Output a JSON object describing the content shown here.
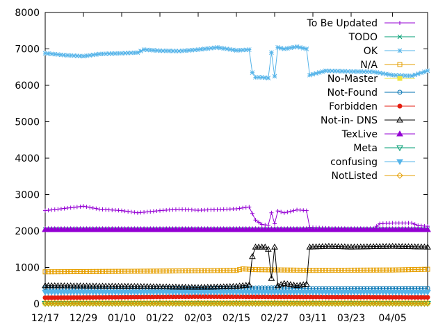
{
  "chart_data": {
    "type": "line",
    "title": "",
    "xlabel": "",
    "ylabel": "",
    "ylim": [
      0,
      8000
    ],
    "yticks": [
      0,
      1000,
      2000,
      3000,
      4000,
      5000,
      6000,
      7000,
      8000
    ],
    "ytick_labels": [
      "0",
      "1000",
      "2000",
      "3000",
      "4000",
      "5000",
      "6000",
      "7000",
      "8000"
    ],
    "x_start": "2012-12-17",
    "x_end": "2013-04-16",
    "xticks": [
      "2012-12-17",
      "2012-12-29",
      "2013-01-10",
      "2013-01-22",
      "2013-02-03",
      "2013-02-15",
      "2013-02-27",
      "2013-03-11",
      "2013-03-23",
      "2013-04-05"
    ],
    "xtick_labels": [
      "12/17",
      "12/29",
      "01/10",
      "01/22",
      "02/03",
      "02/15",
      "02/27",
      "03/11",
      "03/23",
      "04/05"
    ],
    "grid": false,
    "legend_position": "top-right",
    "series": [
      {
        "name": "To Be Updated",
        "color": "#9400d3",
        "marker": "plus",
        "points": [
          [
            "2012-12-17",
            2560
          ],
          [
            "2012-12-23",
            2620
          ],
          [
            "2012-12-29",
            2680
          ],
          [
            "2013-01-03",
            2600
          ],
          [
            "2013-01-10",
            2560
          ],
          [
            "2013-01-15",
            2500
          ],
          [
            "2013-01-22",
            2560
          ],
          [
            "2013-01-28",
            2600
          ],
          [
            "2013-02-03",
            2570
          ],
          [
            "2013-02-09",
            2590
          ],
          [
            "2013-02-15",
            2610
          ],
          [
            "2013-02-19",
            2660
          ],
          [
            "2013-02-21",
            2300
          ],
          [
            "2013-02-23",
            2180
          ],
          [
            "2013-02-25",
            2160
          ],
          [
            "2013-02-26",
            2500
          ],
          [
            "2013-02-27",
            2200
          ],
          [
            "2013-02-28",
            2550
          ],
          [
            "2013-03-02",
            2500
          ],
          [
            "2013-03-06",
            2580
          ],
          [
            "2013-03-09",
            2560
          ],
          [
            "2013-03-10",
            2100
          ],
          [
            "2013-03-15",
            2080
          ],
          [
            "2013-03-23",
            2050
          ],
          [
            "2013-03-30",
            2060
          ],
          [
            "2013-04-01",
            2200
          ],
          [
            "2013-04-05",
            2220
          ],
          [
            "2013-04-11",
            2220
          ],
          [
            "2013-04-13",
            2150
          ],
          [
            "2013-04-16",
            2130
          ]
        ]
      },
      {
        "name": "TODO",
        "color": "#009e73",
        "marker": "x",
        "points": [
          [
            "2012-12-17",
            2040
          ],
          [
            "2013-04-16",
            2040
          ]
        ]
      },
      {
        "name": "OK",
        "color": "#56b4e9",
        "marker": "star",
        "points": [
          [
            "2012-12-17",
            6880
          ],
          [
            "2012-12-23",
            6830
          ],
          [
            "2012-12-29",
            6800
          ],
          [
            "2013-01-03",
            6860
          ],
          [
            "2013-01-10",
            6880
          ],
          [
            "2013-01-15",
            6900
          ],
          [
            "2013-01-17",
            6980
          ],
          [
            "2013-01-22",
            6950
          ],
          [
            "2013-01-28",
            6940
          ],
          [
            "2013-02-03",
            6980
          ],
          [
            "2013-02-09",
            7040
          ],
          [
            "2013-02-15",
            6960
          ],
          [
            "2013-02-19",
            6980
          ],
          [
            "2013-02-20",
            6350
          ],
          [
            "2013-02-21",
            6220
          ],
          [
            "2013-02-23",
            6220
          ],
          [
            "2013-02-25",
            6200
          ],
          [
            "2013-02-26",
            6900
          ],
          [
            "2013-02-27",
            6250
          ],
          [
            "2013-02-28",
            7040
          ],
          [
            "2013-03-02",
            7000
          ],
          [
            "2013-03-06",
            7060
          ],
          [
            "2013-03-09",
            7000
          ],
          [
            "2013-03-10",
            6280
          ],
          [
            "2013-03-15",
            6400
          ],
          [
            "2013-03-23",
            6380
          ],
          [
            "2013-03-30",
            6370
          ],
          [
            "2013-04-05",
            6280
          ],
          [
            "2013-04-11",
            6260
          ],
          [
            "2013-04-16",
            6400
          ]
        ]
      },
      {
        "name": "N/A",
        "color": "#e69f00",
        "marker": "square",
        "points": [
          [
            "2012-12-17",
            880
          ],
          [
            "2013-01-22",
            900
          ],
          [
            "2013-02-15",
            920
          ],
          [
            "2013-02-17",
            960
          ],
          [
            "2013-02-21",
            940
          ],
          [
            "2013-03-11",
            920
          ],
          [
            "2013-04-05",
            930
          ],
          [
            "2013-04-16",
            950
          ]
        ]
      },
      {
        "name": "No-Master",
        "color": "#f0e442",
        "marker": "fsquare",
        "points": [
          [
            "2012-12-17",
            20
          ],
          [
            "2013-04-16",
            20
          ]
        ]
      },
      {
        "name": "Not-Found",
        "color": "#0072b2",
        "marker": "circle",
        "points": [
          [
            "2012-12-17",
            440
          ],
          [
            "2013-01-22",
            420
          ],
          [
            "2013-02-27",
            440
          ],
          [
            "2013-03-11",
            420
          ],
          [
            "2013-04-16",
            430
          ]
        ]
      },
      {
        "name": "Forbidden",
        "color": "#e51e10",
        "marker": "fcircle",
        "points": [
          [
            "2012-12-17",
            170
          ],
          [
            "2013-02-03",
            200
          ],
          [
            "2013-03-11",
            190
          ],
          [
            "2013-04-16",
            180
          ]
        ]
      },
      {
        "name": "Not-in- DNS",
        "color": "#000000",
        "marker": "triangle",
        "points": [
          [
            "2012-12-17",
            500
          ],
          [
            "2013-01-15",
            480
          ],
          [
            "2013-02-03",
            450
          ],
          [
            "2013-02-15",
            480
          ],
          [
            "2013-02-19",
            520
          ],
          [
            "2013-02-20",
            1300
          ],
          [
            "2013-02-21",
            1560
          ],
          [
            "2013-02-24",
            1560
          ],
          [
            "2013-02-25",
            1500
          ],
          [
            "2013-02-26",
            700
          ],
          [
            "2013-02-27",
            1560
          ],
          [
            "2013-02-28",
            500
          ],
          [
            "2013-03-02",
            560
          ],
          [
            "2013-03-06",
            500
          ],
          [
            "2013-03-09",
            540
          ],
          [
            "2013-03-10",
            1560
          ],
          [
            "2013-03-16",
            1580
          ],
          [
            "2013-03-23",
            1560
          ],
          [
            "2013-04-05",
            1580
          ],
          [
            "2013-04-16",
            1560
          ]
        ]
      },
      {
        "name": "TexLive",
        "color": "#9400d3",
        "marker": "ftriangle",
        "points": [
          [
            "2012-12-17",
            2040
          ],
          [
            "2013-04-16",
            2040
          ]
        ]
      },
      {
        "name": "Meta",
        "color": "#009e73",
        "marker": "itriangle",
        "points": [
          [
            "2012-12-17",
            10
          ],
          [
            "2013-04-16",
            10
          ]
        ]
      },
      {
        "name": "confusing",
        "color": "#56b4e9",
        "marker": "fitriangle",
        "points": [
          [
            "2012-12-17",
            320
          ],
          [
            "2013-04-16",
            320
          ]
        ]
      },
      {
        "name": "NotListed",
        "color": "#e69f00",
        "marker": "diamond",
        "points": [
          [
            "2012-12-17",
            15
          ],
          [
            "2013-04-16",
            15
          ]
        ]
      }
    ]
  }
}
